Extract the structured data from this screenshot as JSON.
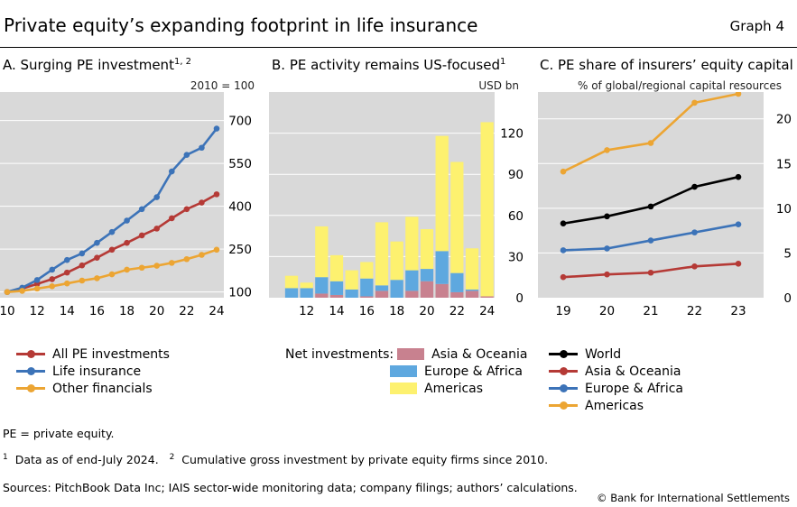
{
  "header": {
    "title": "Private equity’s expanding footprint in life insurance",
    "graph_label": "Graph 4"
  },
  "colors": {
    "red": "#b53a36",
    "blue": "#3c73b8",
    "orange": "#eca533",
    "black": "#000000",
    "pink": "#c8818f",
    "lightblue": "#5ea8df",
    "yellow": "#fdf16f",
    "panel_bg": "#d9d9d9",
    "grid": "#ffffff"
  },
  "panels": {
    "a": {
      "title": "A. Surging PE investment",
      "title_sup": "1, 2",
      "unit": "2010 = 100"
    },
    "b": {
      "title": "B. PE activity remains US-focused",
      "title_sup": "1",
      "unit": "USD bn",
      "legend_caption": "Net investments:"
    },
    "c": {
      "title": "C. PE share of insurers’ equity capital",
      "unit": "% of global/regional capital resources"
    }
  },
  "chart_data": [
    {
      "type": "line",
      "title": "A. Surging PE investment",
      "ylabel": "2010 = 100",
      "x": [
        10,
        11,
        12,
        13,
        14,
        15,
        16,
        17,
        18,
        19,
        20,
        21,
        22,
        23,
        24
      ],
      "x_ticks": [
        "10",
        "12",
        "14",
        "16",
        "18",
        "20",
        "22",
        "24"
      ],
      "y_ticks": [
        "100",
        "250",
        "400",
        "550",
        "700"
      ],
      "ylim": [
        80,
        800
      ],
      "series": [
        {
          "name": "All PE investments",
          "color": "#b53a36",
          "values": [
            100,
            112,
            128,
            145,
            168,
            193,
            220,
            248,
            272,
            298,
            322,
            358,
            390,
            413,
            442
          ]
        },
        {
          "name": "Life insurance",
          "color": "#3c73b8",
          "values": [
            100,
            115,
            142,
            178,
            212,
            235,
            272,
            310,
            350,
            390,
            432,
            522,
            580,
            605,
            672
          ]
        },
        {
          "name": "Other financials",
          "color": "#eca533",
          "values": [
            100,
            104,
            112,
            120,
            130,
            140,
            148,
            162,
            178,
            185,
            192,
            202,
            215,
            230,
            248
          ]
        }
      ]
    },
    {
      "type": "bar",
      "stacked": true,
      "title": "B. PE activity remains US-focused",
      "ylabel": "USD bn",
      "categories": [
        10,
        11,
        12,
        13,
        14,
        15,
        16,
        17,
        18,
        19,
        20,
        21,
        22,
        23,
        24
      ],
      "x_ticks": [
        "12",
        "14",
        "16",
        "18",
        "20",
        "22",
        "24"
      ],
      "y_ticks": [
        "0",
        "30",
        "60",
        "90",
        "120"
      ],
      "ylim": [
        0,
        150
      ],
      "legend_caption": "Net investments:",
      "series": [
        {
          "name": "Asia & Oceania",
          "color": "#c8818f",
          "values": [
            0,
            0,
            0,
            3,
            2,
            0,
            1,
            5,
            0,
            5,
            12,
            10,
            4,
            5,
            1
          ]
        },
        {
          "name": "Europe & Africa",
          "color": "#5ea8df",
          "values": [
            0,
            7,
            7,
            12,
            10,
            6,
            13,
            4,
            13,
            15,
            9,
            24,
            14,
            1,
            0
          ]
        },
        {
          "name": "Americas",
          "color": "#fdf16f",
          "values": [
            0,
            9,
            4,
            37,
            19,
            14,
            12,
            46,
            28,
            39,
            29,
            84,
            81,
            30,
            127
          ]
        }
      ]
    },
    {
      "type": "line",
      "title": "C. PE share of insurers’ equity capital",
      "ylabel": "% of global/regional capital resources",
      "x": [
        "19",
        "20",
        "21",
        "22",
        "23"
      ],
      "y_ticks": [
        "0",
        "5",
        "10",
        "15",
        "20"
      ],
      "ylim": [
        0,
        23
      ],
      "series": [
        {
          "name": "World",
          "color": "#000000",
          "values": [
            8.3,
            9.1,
            10.2,
            12.4,
            13.5
          ]
        },
        {
          "name": "Asia & Oceania",
          "color": "#b53a36",
          "values": [
            2.3,
            2.6,
            2.8,
            3.5,
            3.8
          ]
        },
        {
          "name": "Europe & Africa",
          "color": "#3c73b8",
          "values": [
            5.3,
            5.5,
            6.4,
            7.3,
            8.2
          ]
        },
        {
          "name": "Americas",
          "color": "#eca533",
          "values": [
            14.1,
            16.5,
            17.3,
            21.8,
            22.8
          ]
        }
      ]
    }
  ],
  "notes": {
    "abbreviation": "PE = private equity.",
    "footnote1_mark": "1",
    "footnote1": "Data as of end-July 2024.",
    "footnote2_mark": "2",
    "footnote2": "Cumulative gross investment by private equity firms since 2010.",
    "sources": "Sources: PitchBook Data Inc; IAIS sector-wide monitoring data; company filings; authors’ calculations.",
    "copyright": "© Bank for International Settlements"
  }
}
